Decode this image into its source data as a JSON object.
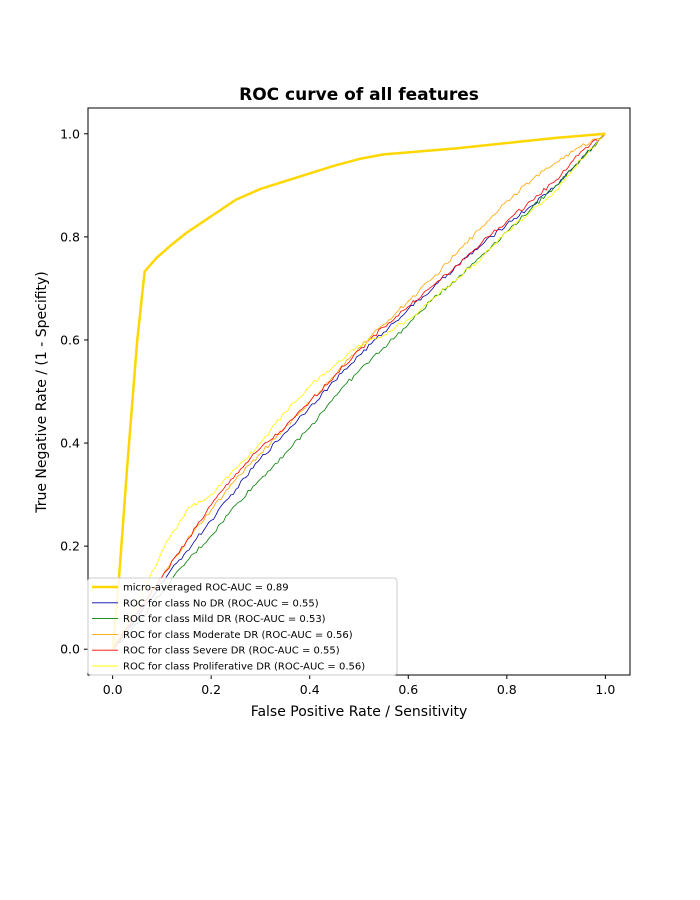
{
  "chart_data": {
    "type": "line",
    "title": "ROC curve of all features",
    "xlabel": "False Positive Rate / Sensitivity",
    "ylabel": "True Negative Rate / (1 - Specifity)",
    "xlim": [
      -0.05,
      1.05
    ],
    "ylim": [
      -0.05,
      1.05
    ],
    "x_ticks": [
      "0.0",
      "0.2",
      "0.4",
      "0.6",
      "0.8",
      "1.0"
    ],
    "y_ticks": [
      "0.0",
      "0.2",
      "0.4",
      "0.6",
      "0.8",
      "1.0"
    ],
    "grid": false,
    "legend_position": "lower-left",
    "series": [
      {
        "name": "micro-averaged ROC-AUC = 0.89",
        "color": "#ffd700",
        "width": 2.5,
        "x": [
          0.0,
          0.01,
          0.03,
          0.05,
          0.065,
          0.09,
          0.12,
          0.15,
          0.2,
          0.25,
          0.3,
          0.35,
          0.4,
          0.45,
          0.5,
          0.55,
          0.6,
          0.7,
          0.8,
          0.9,
          1.0
        ],
        "y": [
          0.0,
          0.1,
          0.36,
          0.6,
          0.733,
          0.76,
          0.785,
          0.808,
          0.84,
          0.872,
          0.893,
          0.908,
          0.923,
          0.938,
          0.951,
          0.96,
          0.964,
          0.972,
          0.982,
          0.992,
          1.0
        ]
      },
      {
        "name": "ROC for class No DR (ROC-AUC = 0.55)",
        "color": "#0000aa",
        "width": 0.8,
        "x": [
          0.0,
          0.05,
          0.1,
          0.15,
          0.2,
          0.25,
          0.3,
          0.35,
          0.4,
          0.45,
          0.5,
          0.55,
          0.6,
          0.65,
          0.7,
          0.75,
          0.8,
          0.85,
          0.9,
          0.95,
          1.0
        ],
        "y": [
          0.0,
          0.06,
          0.13,
          0.19,
          0.25,
          0.31,
          0.37,
          0.42,
          0.47,
          0.52,
          0.57,
          0.615,
          0.66,
          0.7,
          0.745,
          0.785,
          0.825,
          0.86,
          0.9,
          0.95,
          1.0
        ]
      },
      {
        "name": "ROC for class Mild DR (ROC-AUC = 0.53)",
        "color": "#008000",
        "width": 0.8,
        "x": [
          0.0,
          0.05,
          0.1,
          0.15,
          0.2,
          0.25,
          0.3,
          0.35,
          0.4,
          0.45,
          0.5,
          0.55,
          0.6,
          0.65,
          0.7,
          0.75,
          0.8,
          0.85,
          0.9,
          0.95,
          1.0
        ],
        "y": [
          0.0,
          0.05,
          0.11,
          0.17,
          0.22,
          0.28,
          0.33,
          0.38,
          0.43,
          0.49,
          0.54,
          0.585,
          0.63,
          0.68,
          0.72,
          0.765,
          0.81,
          0.855,
          0.9,
          0.95,
          1.0
        ]
      },
      {
        "name": "ROC for class Moderate DR (ROC-AUC = 0.56)",
        "color": "#ffa500",
        "width": 0.8,
        "x": [
          0.0,
          0.05,
          0.1,
          0.15,
          0.2,
          0.25,
          0.3,
          0.35,
          0.4,
          0.45,
          0.5,
          0.55,
          0.6,
          0.65,
          0.7,
          0.75,
          0.8,
          0.85,
          0.9,
          0.95,
          1.0
        ],
        "y": [
          0.0,
          0.07,
          0.14,
          0.21,
          0.27,
          0.33,
          0.38,
          0.43,
          0.48,
          0.53,
          0.585,
          0.63,
          0.675,
          0.72,
          0.77,
          0.82,
          0.87,
          0.91,
          0.945,
          0.975,
          1.0
        ]
      },
      {
        "name": "ROC for class Severe DR (ROC-AUC = 0.55)",
        "color": "#ff0000",
        "width": 0.8,
        "x": [
          0.0,
          0.05,
          0.1,
          0.15,
          0.2,
          0.25,
          0.3,
          0.35,
          0.4,
          0.45,
          0.5,
          0.55,
          0.6,
          0.65,
          0.7,
          0.75,
          0.8,
          0.85,
          0.9,
          0.95,
          1.0
        ],
        "y": [
          0.0,
          0.07,
          0.14,
          0.21,
          0.28,
          0.34,
          0.39,
          0.43,
          0.48,
          0.53,
          0.58,
          0.625,
          0.665,
          0.705,
          0.745,
          0.79,
          0.83,
          0.87,
          0.91,
          0.965,
          1.0
        ]
      },
      {
        "name": "ROC for class Proliferative DR (ROC-AUC = 0.56)",
        "color": "#ffff00",
        "width": 0.8,
        "x": [
          0.0,
          0.05,
          0.1,
          0.15,
          0.2,
          0.25,
          0.3,
          0.35,
          0.4,
          0.45,
          0.5,
          0.55,
          0.6,
          0.65,
          0.7,
          0.75,
          0.8,
          0.85,
          0.9,
          0.95,
          1.0
        ],
        "y": [
          0.0,
          0.09,
          0.19,
          0.27,
          0.3,
          0.35,
          0.4,
          0.46,
          0.51,
          0.55,
          0.59,
          0.61,
          0.64,
          0.68,
          0.72,
          0.76,
          0.81,
          0.85,
          0.89,
          0.95,
          1.0
        ]
      }
    ]
  }
}
